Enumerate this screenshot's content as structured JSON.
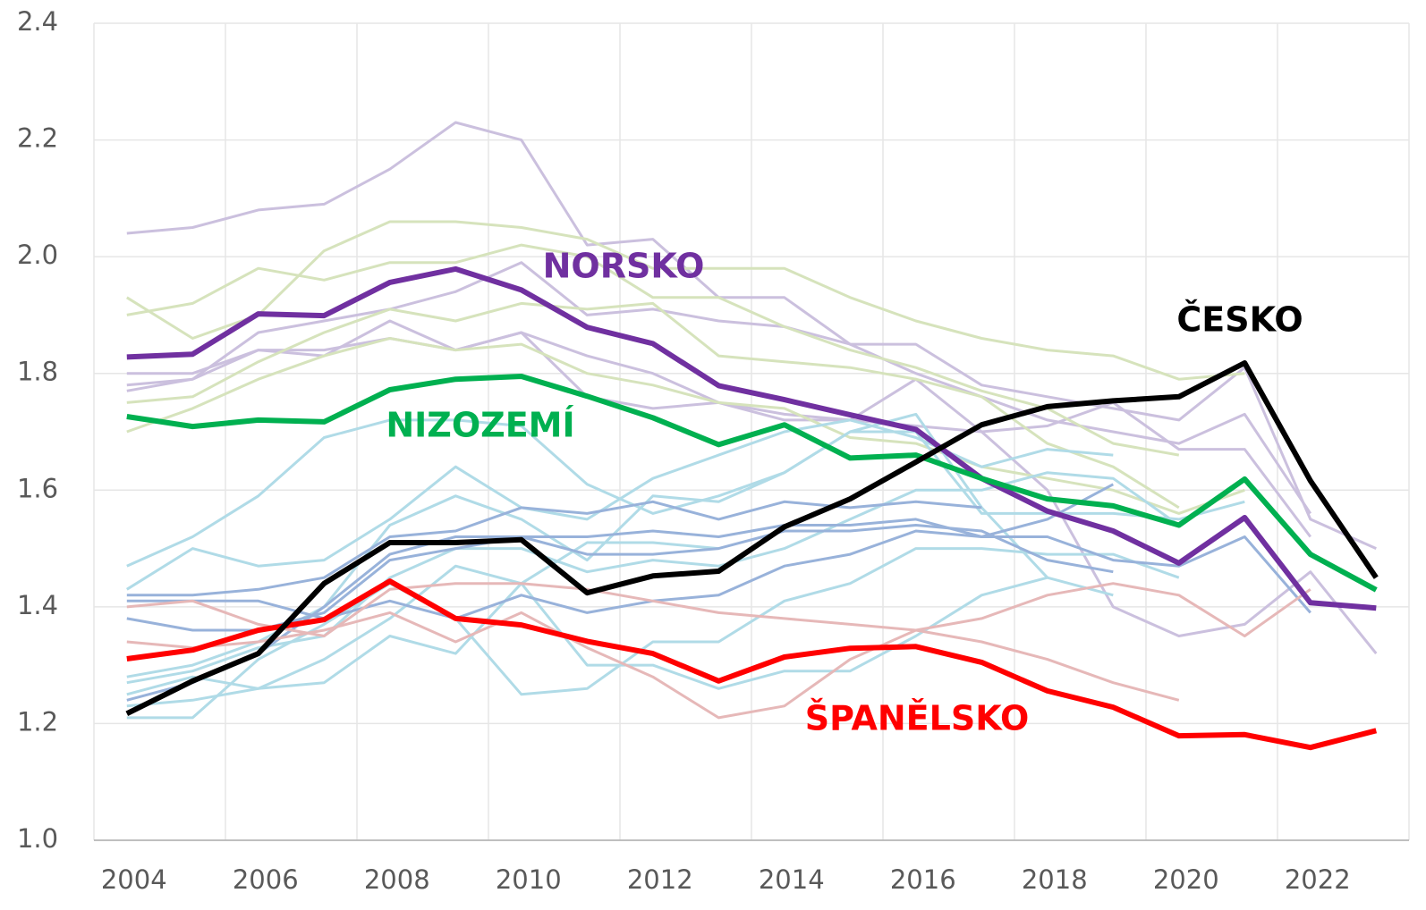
{
  "chart_data": {
    "type": "line",
    "categories": [
      "2004",
      null,
      "2006",
      null,
      "2008",
      null,
      "2010",
      null,
      "2012",
      null,
      "2014",
      null,
      "2016",
      null,
      "2018",
      null,
      "2020",
      null,
      "2022",
      null
    ],
    "ylim": [
      1,
      2.4
    ],
    "yticks": [
      {
        "value": 1,
        "label": "1.0"
      },
      1.2,
      1.4,
      1.6,
      1.8,
      {
        "value": 2,
        "label": "2.0"
      },
      2.2,
      2.4
    ],
    "grid": true,
    "series": [
      {
        "color": "#cbc0de",
        "values": [
          2.04,
          2.05,
          2.08,
          2.09,
          2.15,
          2.23,
          2.2,
          2.02,
          2.03,
          1.93,
          1.93,
          1.85,
          1.85,
          1.78,
          1.76,
          1.74,
          1.72,
          1.81,
          1.55,
          1.5
        ]
      },
      {
        "color": "#cbc0de",
        "values": [
          1.8,
          1.8,
          1.84,
          1.84,
          1.86,
          1.84,
          1.87,
          1.83,
          1.8,
          1.75,
          1.73,
          1.72,
          1.71,
          1.7,
          1.71,
          1.75,
          1.67,
          1.67,
          1.52,
          null
        ]
      },
      {
        "color": "#cbc0de",
        "values": [
          1.78,
          1.79,
          1.87,
          1.89,
          1.91,
          1.94,
          1.99,
          1.9,
          1.91,
          1.89,
          1.88,
          1.85,
          1.8,
          1.76,
          1.72,
          1.7,
          1.68,
          1.73,
          1.56,
          null
        ]
      },
      {
        "color": "#cbc0de",
        "values": [
          1.77,
          1.79,
          1.84,
          1.83,
          1.89,
          1.84,
          1.87,
          1.76,
          1.74,
          1.75,
          1.72,
          1.72,
          1.79,
          1.7,
          1.6,
          1.4,
          1.35,
          1.37,
          1.46,
          1.32
        ]
      },
      {
        "color": "#d6e3bc",
        "values": [
          1.93,
          1.86,
          1.9,
          2.01,
          2.06,
          2.06,
          2.05,
          2.03,
          1.98,
          1.98,
          1.98,
          1.93,
          1.89,
          1.86,
          1.84,
          1.83,
          1.79,
          1.8,
          null,
          null
        ]
      },
      {
        "color": "#d6e3bc",
        "values": [
          1.9,
          1.92,
          1.98,
          1.96,
          1.99,
          1.99,
          2.02,
          2,
          1.93,
          1.93,
          1.88,
          1.84,
          1.81,
          1.77,
          1.74,
          1.68,
          1.66,
          null,
          null,
          null
        ]
      },
      {
        "color": "#d6e3bc",
        "values": [
          1.75,
          1.76,
          1.82,
          1.87,
          1.91,
          1.89,
          1.92,
          1.91,
          1.92,
          1.83,
          1.82,
          1.81,
          1.79,
          1.76,
          1.68,
          1.64,
          1.57,
          null,
          null,
          null
        ]
      },
      {
        "color": "#d6e3bc",
        "values": [
          1.7,
          1.74,
          1.79,
          1.83,
          1.86,
          1.84,
          1.85,
          1.8,
          1.78,
          1.75,
          1.74,
          1.69,
          1.68,
          1.64,
          1.62,
          1.6,
          1.56,
          1.6,
          null,
          null
        ]
      },
      {
        "color": "#b0dbe7",
        "values": [
          1.47,
          1.52,
          1.59,
          1.69,
          1.72,
          1.72,
          1.71,
          1.61,
          1.56,
          1.59,
          1.63,
          1.7,
          1.73,
          1.57,
          1.45,
          null,
          null,
          null,
          null,
          null
        ]
      },
      {
        "color": "#b0dbe7",
        "values": [
          1.43,
          1.5,
          1.47,
          1.48,
          1.55,
          1.64,
          1.57,
          1.55,
          1.62,
          1.66,
          1.7,
          1.72,
          1.69,
          1.64,
          1.67,
          1.66,
          null,
          null,
          null,
          null
        ]
      },
      {
        "color": "#b0dbe7",
        "values": [
          1.28,
          1.3,
          1.34,
          1.4,
          1.54,
          1.59,
          1.55,
          1.48,
          1.59,
          1.58,
          1.63,
          1.7,
          1.7,
          1.56,
          1.56,
          1.56,
          1.55,
          1.58,
          null,
          null
        ]
      },
      {
        "color": "#b0dbe7",
        "values": [
          1.21,
          1.21,
          1.31,
          1.37,
          1.44,
          1.38,
          1.25,
          1.26,
          1.34,
          1.34,
          1.41,
          1.44,
          1.5,
          1.5,
          1.49,
          1.49,
          1.45,
          null,
          null,
          null
        ]
      },
      {
        "color": "#b0dbe7",
        "values": [
          1.25,
          1.28,
          1.26,
          1.27,
          1.35,
          1.32,
          1.44,
          1.3,
          1.3,
          1.26,
          1.29,
          1.29,
          1.35,
          1.42,
          1.45,
          1.42,
          null,
          null,
          null,
          null
        ]
      },
      {
        "color": "#b0dbe7",
        "values": [
          1.27,
          1.29,
          1.33,
          1.35,
          1.45,
          1.5,
          1.5,
          1.46,
          1.48,
          1.47,
          1.5,
          1.55,
          1.6,
          1.6,
          1.63,
          1.62,
          1.54,
          null,
          null,
          null
        ]
      },
      {
        "color": "#b0dbe7",
        "values": [
          1.23,
          1.24,
          1.26,
          1.31,
          1.38,
          1.47,
          1.44,
          1.51,
          1.51,
          1.5,
          null,
          null,
          null,
          null,
          null,
          null,
          null,
          null,
          null,
          null
        ]
      },
      {
        "color": "#98b2da",
        "values": [
          1.42,
          1.42,
          1.43,
          1.45,
          1.52,
          1.53,
          1.57,
          1.56,
          1.58,
          1.55,
          1.58,
          1.57,
          1.58,
          1.57,
          null,
          null,
          null,
          null,
          null,
          null
        ]
      },
      {
        "color": "#98b2da",
        "values": [
          1.38,
          1.36,
          1.36,
          1.39,
          1.48,
          1.5,
          1.52,
          1.52,
          1.53,
          1.52,
          1.54,
          1.54,
          1.55,
          1.52,
          1.52,
          1.48,
          1.47,
          1.52,
          1.39,
          null
        ]
      },
      {
        "color": "#98b2da",
        "values": [
          1.41,
          1.41,
          1.41,
          1.38,
          1.41,
          1.38,
          1.42,
          1.39,
          1.41,
          1.42,
          1.47,
          1.49,
          1.53,
          1.52,
          1.55,
          1.61,
          null,
          null,
          null,
          null
        ]
      },
      {
        "color": "#98b2da",
        "values": [
          1.24,
          1.27,
          1.32,
          1.4,
          1.49,
          1.52,
          1.52,
          1.49,
          1.49,
          1.5,
          1.53,
          1.53,
          1.54,
          1.53,
          1.48,
          1.46,
          null,
          null,
          null,
          null
        ]
      },
      {
        "color": "#e6b8b8",
        "values": [
          1.4,
          1.41,
          1.37,
          1.35,
          1.43,
          1.44,
          1.44,
          1.43,
          1.41,
          1.39,
          1.38,
          1.37,
          1.36,
          1.38,
          1.42,
          1.44,
          1.42,
          1.35,
          1.43,
          null
        ]
      },
      {
        "color": "#e6b8b8",
        "values": [
          1.34,
          1.33,
          1.34,
          1.36,
          1.39,
          1.34,
          1.39,
          1.33,
          1.28,
          1.21,
          1.23,
          1.31,
          1.36,
          1.34,
          1.31,
          1.27,
          1.24,
          null,
          null,
          null
        ]
      },
      {
        "name": "NORSKO",
        "color": "#7030a0",
        "values": [
          1.828,
          1.833,
          1.902,
          1.899,
          1.956,
          1.979,
          1.943,
          1.879,
          1.851,
          1.779,
          1.755,
          1.729,
          1.704,
          1.62,
          1.564,
          1.53,
          1.475,
          1.553,
          1.407,
          1.398
        ]
      },
      {
        "name": "NIZOZEMÍ",
        "color": "#00b050",
        "values": [
          1.726,
          1.709,
          1.72,
          1.717,
          1.772,
          1.79,
          1.795,
          1.761,
          1.724,
          1.678,
          1.712,
          1.655,
          1.66,
          1.62,
          1.585,
          1.573,
          1.54,
          1.619,
          1.49,
          1.429
        ]
      },
      {
        "name": "ŠPANĚLSKO",
        "color": "#ff0000",
        "values": [
          1.311,
          1.326,
          1.36,
          1.378,
          1.444,
          1.38,
          1.369,
          1.341,
          1.32,
          1.273,
          1.314,
          1.329,
          1.332,
          1.305,
          1.256,
          1.228,
          1.179,
          1.181,
          1.159,
          1.188
        ]
      },
      {
        "name": "ČESKO",
        "color": "#000000",
        "values": [
          1.217,
          1.273,
          1.32,
          1.44,
          1.51,
          1.51,
          1.515,
          1.424,
          1.453,
          1.461,
          1.537,
          1.585,
          1.648,
          1.712,
          1.743,
          1.753,
          1.76,
          1.818,
          1.616,
          1.45
        ]
      }
    ]
  }
}
